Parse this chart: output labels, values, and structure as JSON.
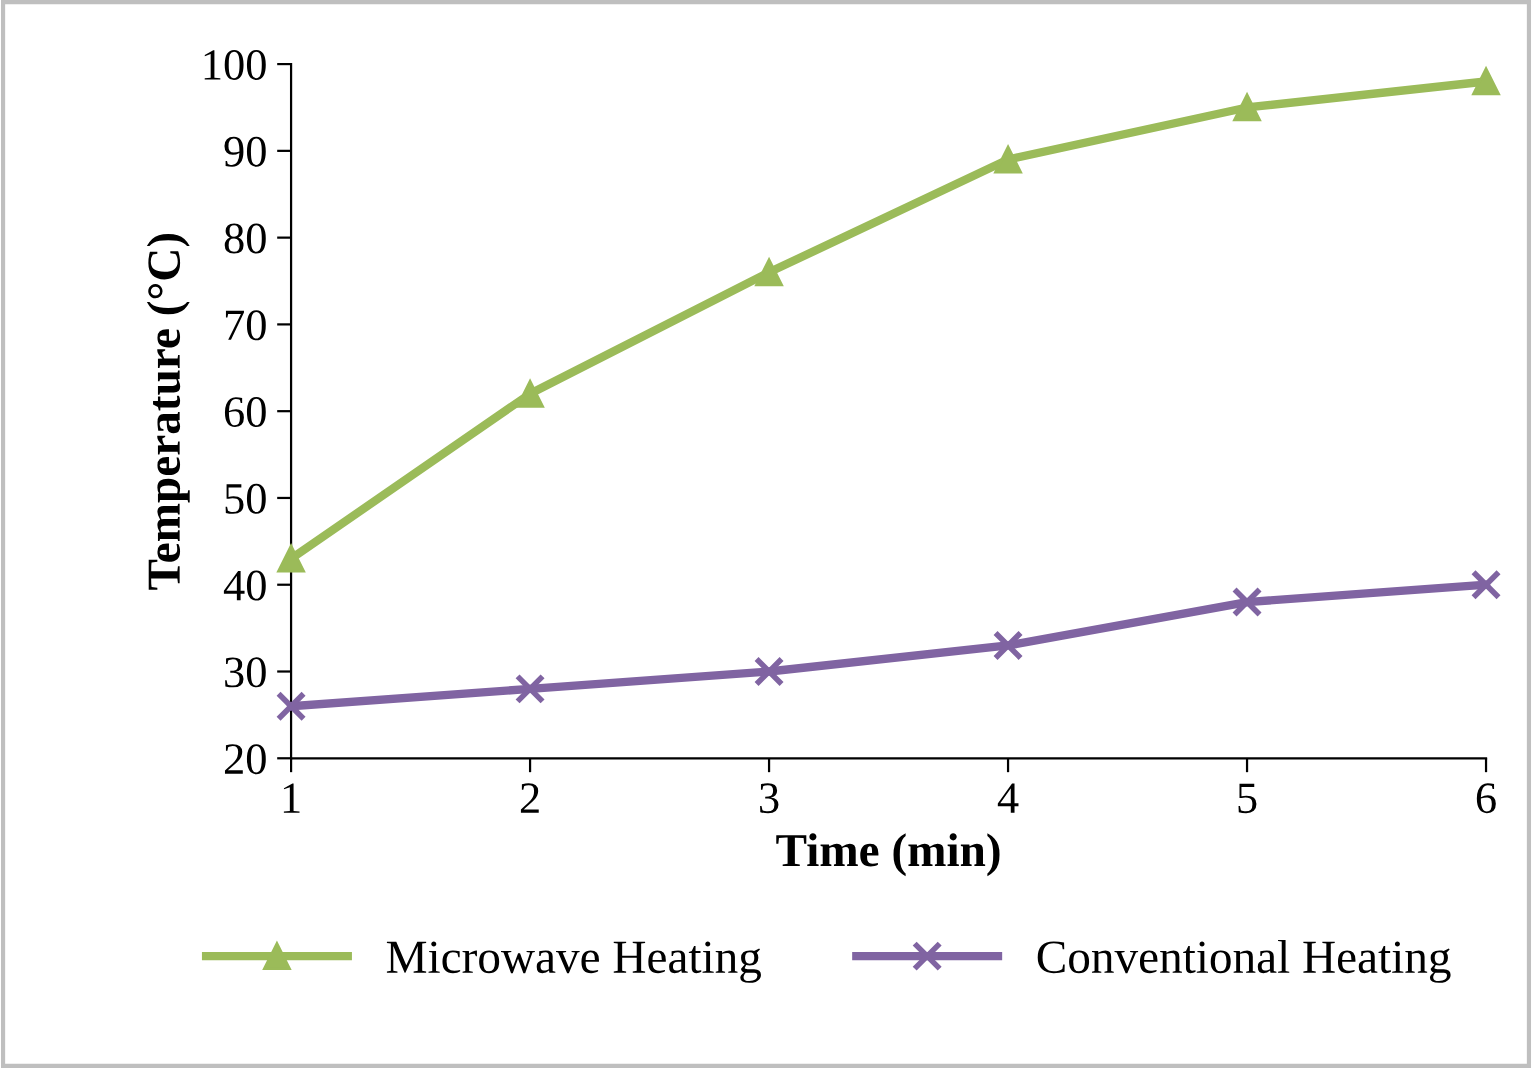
{
  "chart_data": {
    "type": "line",
    "xlabel": "Time (min)",
    "ylabel": "Temperature (°C)",
    "x": [
      1,
      2,
      3,
      4,
      5,
      6
    ],
    "series": [
      {
        "name": "Microwave Heating",
        "color": "#9bbb59",
        "marker": "triangle",
        "values": [
          43,
          62,
          76,
          89,
          95,
          98
        ]
      },
      {
        "name": "Conventional Heating",
        "color": "#8064a2",
        "marker": "cross",
        "values": [
          26,
          28,
          30,
          33,
          38,
          40
        ]
      }
    ],
    "xlim": [
      1,
      6
    ],
    "xticks": [
      1,
      2,
      3,
      4,
      5,
      6
    ],
    "ylim": [
      20,
      100
    ],
    "yticks": [
      20,
      30,
      40,
      50,
      60,
      70,
      80,
      90,
      100
    ],
    "grid": false,
    "legend": "bottom",
    "line_style": "solid"
  }
}
